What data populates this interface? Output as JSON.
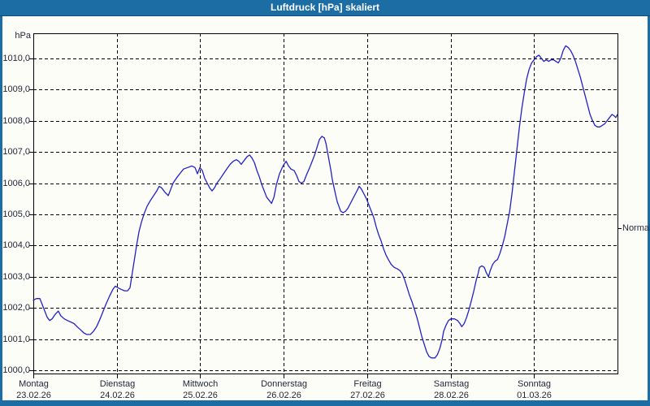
{
  "window": {
    "title": "Luftdruck [hPa] skaliert"
  },
  "colors": {
    "frame_blue": "#1d6da5",
    "titlebar_edge": "#0e4d7b",
    "page_background": "#fdfdf7",
    "axis_black": "#000000",
    "label_text": "#1f2437",
    "series_blue": "#2222c0"
  },
  "chart_data": {
    "type": "line",
    "title": "Luftdruck [hPa] skaliert",
    "unit_label": "hPa",
    "grid": "dashed",
    "legend_position": "none",
    "y_axis": {
      "min": 999.9,
      "max": 1010.8,
      "tick_values": [
        1000,
        1001,
        1002,
        1003,
        1004,
        1005,
        1006,
        1007,
        1008,
        1009,
        1010
      ],
      "tick_labels": [
        "1000,0",
        "1001,0",
        "1002,0",
        "1003,0",
        "1004,0",
        "1005,0",
        "1006,0",
        "1007,0",
        "1008,0",
        "1009,0",
        "1010,0"
      ]
    },
    "x_axis": {
      "total_hours": 168,
      "days": [
        {
          "name": "Montag",
          "date": "23.02.26"
        },
        {
          "name": "Dienstag",
          "date": "24.02.26"
        },
        {
          "name": "Mittwoch",
          "date": "25.02.26"
        },
        {
          "name": "Donnerstag",
          "date": "26.02.26"
        },
        {
          "name": "Freitag",
          "date": "27.02.26"
        },
        {
          "name": "Samstag",
          "date": "28.02.26"
        },
        {
          "name": "Sonntag",
          "date": "01.03.26"
        }
      ]
    },
    "right_marker": {
      "label": "Normal",
      "value": 1004.55
    },
    "series": [
      {
        "name": "Luftdruck",
        "color": "#2222c0",
        "points": [
          [
            0,
            1002.25
          ],
          [
            0.9,
            1002.3
          ],
          [
            1.9,
            1002.3
          ],
          [
            2.6,
            1002.1
          ],
          [
            3.3,
            1001.9
          ],
          [
            4,
            1001.7
          ],
          [
            4.7,
            1001.6
          ],
          [
            5.4,
            1001.65
          ],
          [
            6.3,
            1001.8
          ],
          [
            7.2,
            1001.9
          ],
          [
            7.9,
            1001.75
          ],
          [
            8.9,
            1001.65
          ],
          [
            9.8,
            1001.6
          ],
          [
            10.8,
            1001.55
          ],
          [
            11.7,
            1001.5
          ],
          [
            12.6,
            1001.4
          ],
          [
            13.6,
            1001.3
          ],
          [
            14.5,
            1001.2
          ],
          [
            15.4,
            1001.15
          ],
          [
            16.4,
            1001.15
          ],
          [
            17.3,
            1001.25
          ],
          [
            18.2,
            1001.4
          ],
          [
            19.2,
            1001.65
          ],
          [
            20.1,
            1001.9
          ],
          [
            21,
            1002.15
          ],
          [
            22,
            1002.4
          ],
          [
            22.9,
            1002.6
          ],
          [
            23.6,
            1002.7
          ],
          [
            24.3,
            1002.65
          ],
          [
            25.2,
            1002.6
          ],
          [
            26.2,
            1002.55
          ],
          [
            27.1,
            1002.55
          ],
          [
            27.8,
            1002.65
          ],
          [
            28.3,
            1003
          ],
          [
            29,
            1003.5
          ],
          [
            29.7,
            1004
          ],
          [
            30.4,
            1004.45
          ],
          [
            31.1,
            1004.75
          ],
          [
            31.8,
            1005
          ],
          [
            32.7,
            1005.25
          ],
          [
            33.7,
            1005.45
          ],
          [
            34.6,
            1005.6
          ],
          [
            35.5,
            1005.75
          ],
          [
            36.2,
            1005.9
          ],
          [
            36.9,
            1005.85
          ],
          [
            37.9,
            1005.7
          ],
          [
            38.8,
            1005.6
          ],
          [
            39.5,
            1005.8
          ],
          [
            40.2,
            1006
          ],
          [
            41.1,
            1006.15
          ],
          [
            42.1,
            1006.3
          ],
          [
            43.2,
            1006.45
          ],
          [
            44.4,
            1006.5
          ],
          [
            45.6,
            1006.55
          ],
          [
            46.5,
            1006.5
          ],
          [
            47.2,
            1006.3
          ],
          [
            47.9,
            1006.5
          ],
          [
            48.6,
            1006.4
          ],
          [
            49.3,
            1006.15
          ],
          [
            50,
            1006
          ],
          [
            50.7,
            1005.85
          ],
          [
            51.4,
            1005.75
          ],
          [
            52.1,
            1005.85
          ],
          [
            52.8,
            1006
          ],
          [
            53.8,
            1006.15
          ],
          [
            54.7,
            1006.3
          ],
          [
            55.6,
            1006.45
          ],
          [
            56.6,
            1006.6
          ],
          [
            57.5,
            1006.7
          ],
          [
            58.4,
            1006.75
          ],
          [
            59.1,
            1006.7
          ],
          [
            59.8,
            1006.6
          ],
          [
            60.8,
            1006.75
          ],
          [
            61.5,
            1006.85
          ],
          [
            62.2,
            1006.9
          ],
          [
            62.9,
            1006.8
          ],
          [
            63.6,
            1006.65
          ],
          [
            64.3,
            1006.4
          ],
          [
            65,
            1006.2
          ],
          [
            65.7,
            1005.95
          ],
          [
            66.4,
            1005.75
          ],
          [
            67.1,
            1005.55
          ],
          [
            67.8,
            1005.45
          ],
          [
            68.5,
            1005.35
          ],
          [
            69.2,
            1005.55
          ],
          [
            69.9,
            1005.95
          ],
          [
            70.8,
            1006.3
          ],
          [
            71.8,
            1006.55
          ],
          [
            72.7,
            1006.7
          ],
          [
            73.4,
            1006.55
          ],
          [
            74.1,
            1006.45
          ],
          [
            75,
            1006.4
          ],
          [
            75.7,
            1006.25
          ],
          [
            76.4,
            1006.05
          ],
          [
            77.1,
            1006
          ],
          [
            77.8,
            1006.05
          ],
          [
            78.5,
            1006.25
          ],
          [
            79.5,
            1006.5
          ],
          [
            80.2,
            1006.7
          ],
          [
            80.9,
            1006.9
          ],
          [
            81.6,
            1007.15
          ],
          [
            82.3,
            1007.4
          ],
          [
            83,
            1007.5
          ],
          [
            83.7,
            1007.45
          ],
          [
            84.2,
            1007.25
          ],
          [
            84.6,
            1007
          ],
          [
            85.1,
            1006.7
          ],
          [
            85.6,
            1006.4
          ],
          [
            86,
            1006.1
          ],
          [
            86.5,
            1005.85
          ],
          [
            87,
            1005.6
          ],
          [
            87.4,
            1005.4
          ],
          [
            87.9,
            1005.25
          ],
          [
            88.4,
            1005.1
          ],
          [
            89.1,
            1005.05
          ],
          [
            89.8,
            1005.1
          ],
          [
            90.5,
            1005.2
          ],
          [
            91.2,
            1005.35
          ],
          [
            91.9,
            1005.5
          ],
          [
            92.6,
            1005.65
          ],
          [
            93.3,
            1005.8
          ],
          [
            93.7,
            1005.9
          ],
          [
            94.4,
            1005.8
          ],
          [
            95.1,
            1005.65
          ],
          [
            95.8,
            1005.5
          ],
          [
            96.5,
            1005.3
          ],
          [
            97.2,
            1005.1
          ],
          [
            97.9,
            1004.9
          ],
          [
            98.6,
            1004.6
          ],
          [
            99.3,
            1004.35
          ],
          [
            100,
            1004.15
          ],
          [
            100.7,
            1003.9
          ],
          [
            101.4,
            1003.7
          ],
          [
            102.1,
            1003.55
          ],
          [
            102.9,
            1003.4
          ],
          [
            103.8,
            1003.3
          ],
          [
            104.7,
            1003.25
          ],
          [
            105.4,
            1003.2
          ],
          [
            106.1,
            1003.1
          ],
          [
            106.8,
            1002.9
          ],
          [
            107.5,
            1002.65
          ],
          [
            108.2,
            1002.4
          ],
          [
            108.9,
            1002.2
          ],
          [
            109.6,
            1001.95
          ],
          [
            110.3,
            1001.7
          ],
          [
            111,
            1001.4
          ],
          [
            111.7,
            1001.1
          ],
          [
            112.4,
            1000.85
          ],
          [
            113.1,
            1000.6
          ],
          [
            113.8,
            1000.45
          ],
          [
            114.5,
            1000.4
          ],
          [
            115.5,
            1000.4
          ],
          [
            116.2,
            1000.5
          ],
          [
            116.9,
            1000.7
          ],
          [
            117.6,
            1001
          ],
          [
            118,
            1001.25
          ],
          [
            118.7,
            1001.45
          ],
          [
            119.4,
            1001.6
          ],
          [
            120.1,
            1001.65
          ],
          [
            121.1,
            1001.65
          ],
          [
            122,
            1001.6
          ],
          [
            122.7,
            1001.5
          ],
          [
            123.2,
            1001.4
          ],
          [
            123.9,
            1001.5
          ],
          [
            124.6,
            1001.7
          ],
          [
            125.3,
            1001.95
          ],
          [
            126,
            1002.25
          ],
          [
            126.7,
            1002.55
          ],
          [
            127.4,
            1002.9
          ],
          [
            127.9,
            1003.1
          ],
          [
            128.3,
            1003.3
          ],
          [
            129,
            1003.35
          ],
          [
            129.7,
            1003.3
          ],
          [
            130.2,
            1003.15
          ],
          [
            130.9,
            1003
          ],
          [
            131.4,
            1003.2
          ],
          [
            132.1,
            1003.4
          ],
          [
            132.8,
            1003.5
          ],
          [
            133.5,
            1003.55
          ],
          [
            134.2,
            1003.75
          ],
          [
            134.9,
            1004
          ],
          [
            135.6,
            1004.3
          ],
          [
            136.3,
            1004.7
          ],
          [
            137,
            1005.1
          ],
          [
            137.7,
            1005.7
          ],
          [
            138.4,
            1006.4
          ],
          [
            139.1,
            1007.1
          ],
          [
            139.8,
            1007.8
          ],
          [
            140.5,
            1008.4
          ],
          [
            141.2,
            1008.9
          ],
          [
            141.9,
            1009.35
          ],
          [
            142.6,
            1009.65
          ],
          [
            143.3,
            1009.85
          ],
          [
            144,
            1009.95
          ],
          [
            144.7,
            1010.05
          ],
          [
            145.4,
            1010.1
          ],
          [
            146.1,
            1010
          ],
          [
            146.8,
            1009.9
          ],
          [
            147.5,
            1009.95
          ],
          [
            148.2,
            1009.9
          ],
          [
            148.9,
            1009.95
          ],
          [
            149.6,
            1009.95
          ],
          [
            150.3,
            1009.9
          ],
          [
            151,
            1009.85
          ],
          [
            151.7,
            1010
          ],
          [
            152.4,
            1010.25
          ],
          [
            153.1,
            1010.4
          ],
          [
            153.8,
            1010.35
          ],
          [
            154.5,
            1010.25
          ],
          [
            155.2,
            1010.1
          ],
          [
            155.9,
            1009.9
          ],
          [
            156.6,
            1009.65
          ],
          [
            157.3,
            1009.4
          ],
          [
            158,
            1009.1
          ],
          [
            158.7,
            1008.8
          ],
          [
            159.4,
            1008.5
          ],
          [
            160.1,
            1008.2
          ],
          [
            160.8,
            1008
          ],
          [
            161.5,
            1007.85
          ],
          [
            162.2,
            1007.8
          ],
          [
            162.9,
            1007.8
          ],
          [
            163.6,
            1007.85
          ],
          [
            164.3,
            1007.9
          ],
          [
            165,
            1008
          ],
          [
            165.7,
            1008.1
          ],
          [
            166.4,
            1008.2
          ],
          [
            167.1,
            1008.15
          ],
          [
            167.5,
            1008.1
          ],
          [
            168,
            1008.2
          ]
        ]
      }
    ]
  }
}
